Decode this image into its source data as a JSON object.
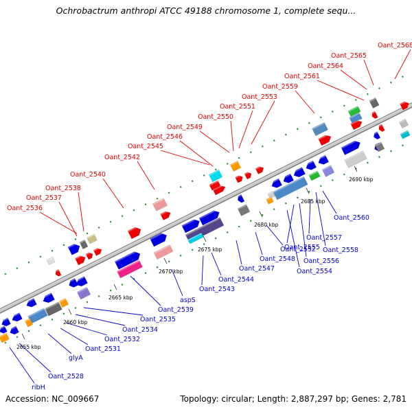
{
  "title": "Ochrobactrum anthropi ATCC 49188 chromosome 1, complete sequ...",
  "footer": {
    "accession": "Accession: NC_009667",
    "summary": "Topology: circular; Length: 2,887,297 bp; Genes: 2,781"
  },
  "colors": {
    "backbone": "#aaaaaa",
    "top_label": "#dd0000",
    "bottom_label": "#0000cc",
    "dots": "#228822"
  },
  "ticks": [
    "2655 kbp",
    "2660 kbp",
    "2665 kbp",
    "2670 kbp",
    "2675 kbp",
    "2680 kbp",
    "2685 kbp",
    "2690 kbp"
  ],
  "labels_top": [
    "Oant_2536",
    "Oant_2537",
    "Oant_2538",
    "Oant_2540",
    "Oant_2542",
    "Oant_2545",
    "Oant_2546",
    "Oant_2549",
    "Oant_2550",
    "Oant_2551",
    "Oant_2553",
    "Oant_2559",
    "Oant_2561",
    "Oant_2564",
    "Oant_2565",
    "Oant_2568"
  ],
  "labels_bottom": [
    "ribH",
    "Oant_2528",
    "glyA",
    "Oant_2531",
    "Oant_2532",
    "Oant_2534",
    "Oant_2535",
    "Oant_2539",
    "aspS",
    "Oant_2543",
    "Oant_2544",
    "Oant_2547",
    "Oant_2548",
    "Oant_2552",
    "Oant_2554",
    "Oant_2555",
    "Oant_2556",
    "Oant_2557",
    "Oant_2558",
    "Oant_2560"
  ]
}
